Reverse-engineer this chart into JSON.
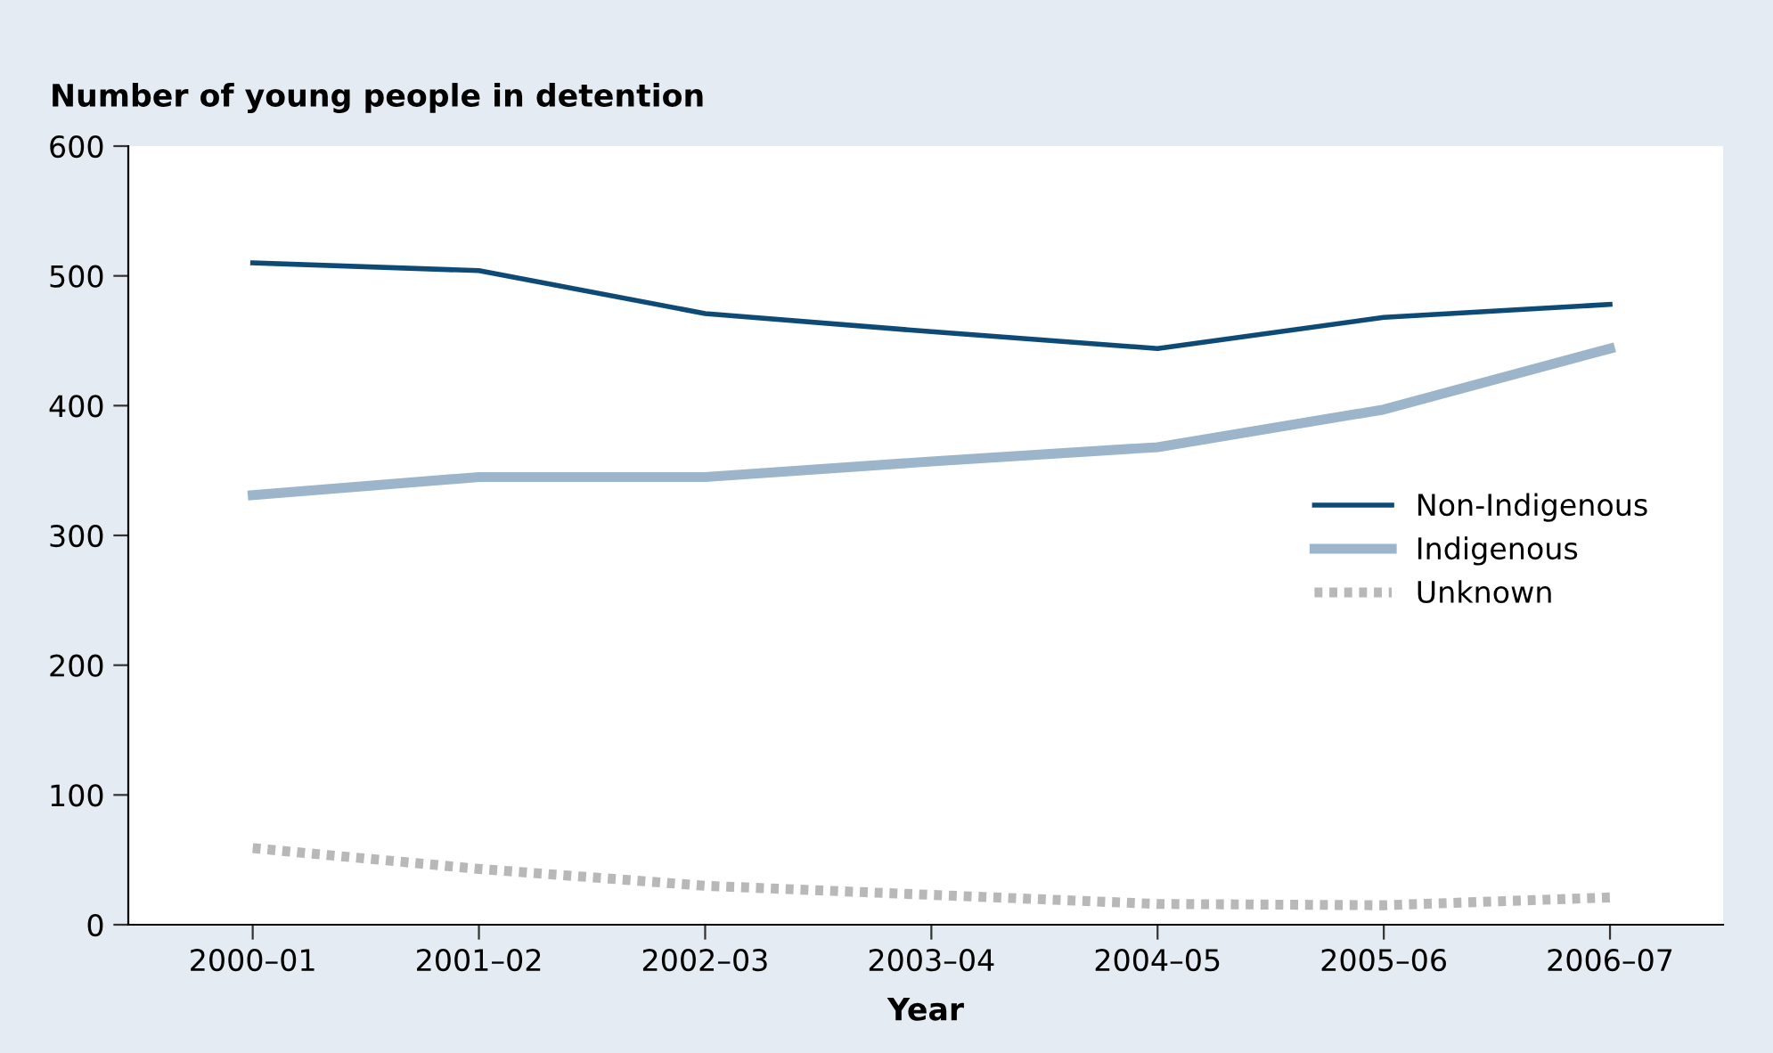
{
  "chart_data": {
    "type": "line",
    "title": "Number of young people in detention",
    "xlabel": "Year",
    "categories": [
      "2000–01",
      "2001–02",
      "2002–03",
      "2003–04",
      "2004–05",
      "2005–06",
      "2006–07"
    ],
    "series": [
      {
        "name": "Non-Indigenous",
        "color": "#0d4a76",
        "values": [
          510,
          504,
          471,
          457,
          444,
          468,
          478
        ]
      },
      {
        "name": "Indigenous",
        "color": "#9cb5cb",
        "values": [
          331,
          345,
          345,
          357,
          368,
          397,
          444
        ]
      },
      {
        "name": "Unknown",
        "color": "#b8b8b8",
        "line_style": "dotted",
        "values": [
          59,
          43,
          30,
          23,
          16,
          15,
          21
        ]
      }
    ],
    "ylim": [
      0,
      600
    ],
    "yticks": [
      0,
      100,
      200,
      300,
      400,
      500,
      600
    ],
    "grid": false,
    "legend": "right",
    "marker": "none",
    "line_style": "solid"
  }
}
